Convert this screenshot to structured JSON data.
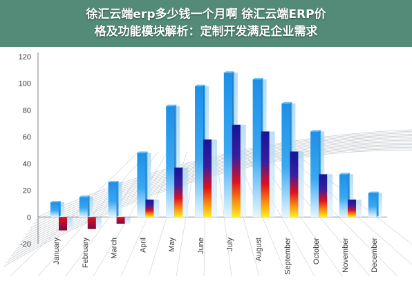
{
  "banner": {
    "line1": "徐汇云端erp多少钱一个月啊 徐汇云端ERP价",
    "line2": "格及功能模块解析：定制开发满足企业需求"
  },
  "chart_data": {
    "type": "bar",
    "title": "",
    "xlabel": "",
    "ylabel": "",
    "ylim": [
      -20,
      120
    ],
    "yticks": [
      -20,
      0,
      20,
      40,
      60,
      80,
      100,
      120
    ],
    "grid": true,
    "legend": "none",
    "categories": [
      "January",
      "February",
      "March",
      "April",
      "May",
      "June",
      "July",
      "August",
      "September",
      "October",
      "November",
      "December"
    ],
    "series": [
      {
        "values": [
          11,
          15,
          26,
          48,
          83,
          98,
          108,
          103,
          85,
          64,
          32,
          18
        ]
      },
      {
        "values": [
          -10,
          -9,
          -5,
          13,
          37,
          58,
          69,
          64,
          49,
          32,
          13,
          null
        ]
      }
    ],
    "colors": {
      "series1": "#1e90e6",
      "series2_top": "#1a1aa0",
      "series2_mid": "#e8102a",
      "series2_bottom": "#ffee00",
      "shadow": "#a8d8f8"
    }
  }
}
